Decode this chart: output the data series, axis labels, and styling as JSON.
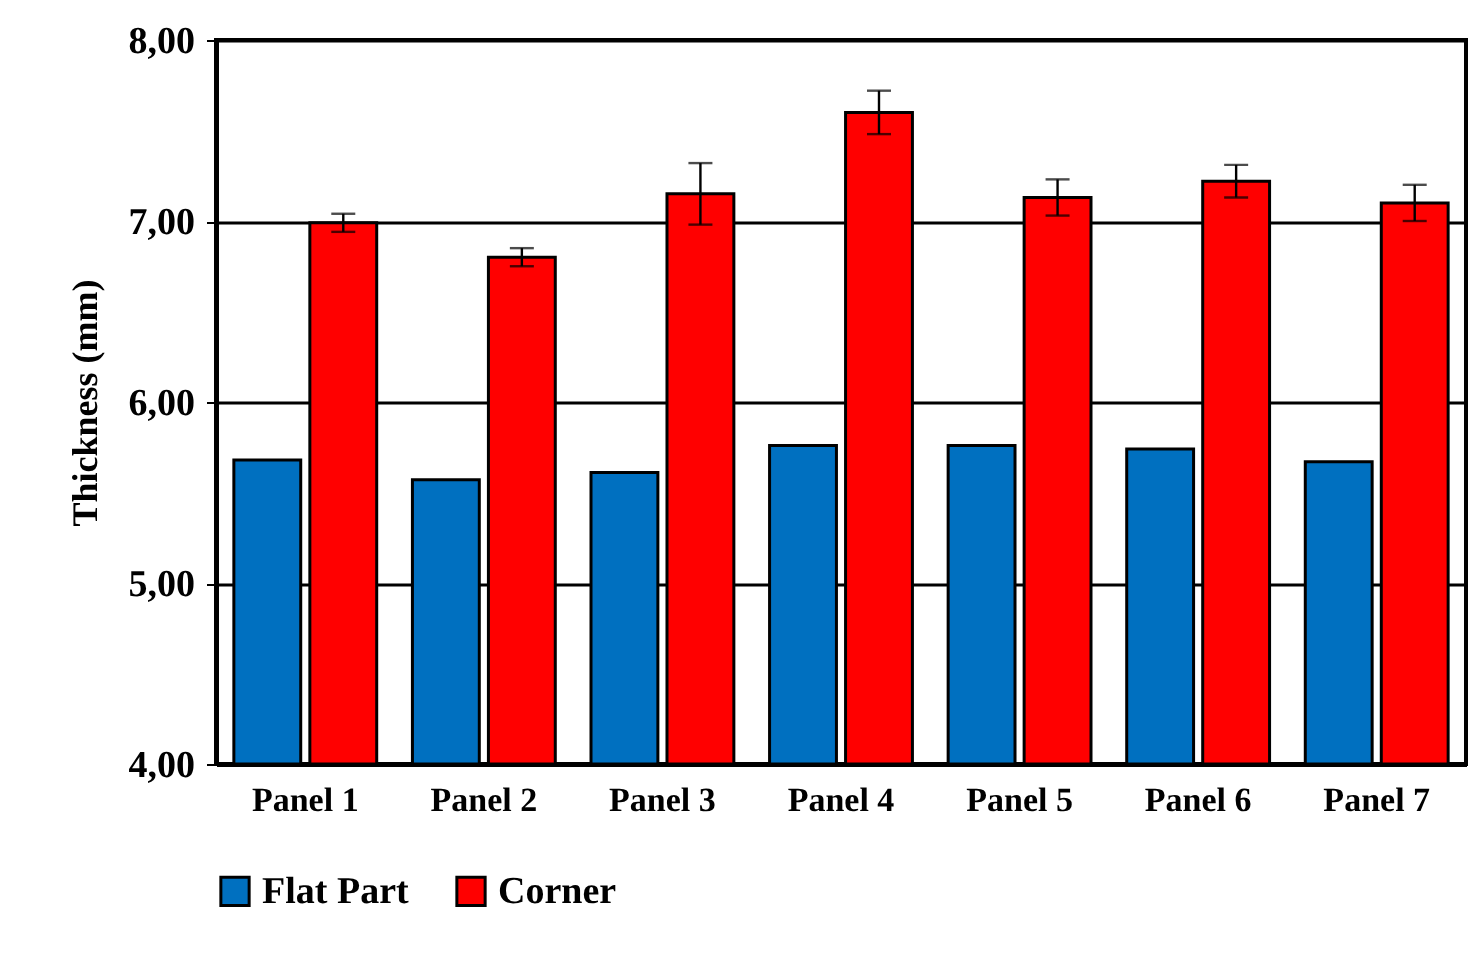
{
  "chart_data": {
    "type": "bar",
    "ylabel": "Thickness (mm)",
    "categories": [
      "Panel 1",
      "Panel 2",
      "Panel 3",
      "Panel 4",
      "Panel 5",
      "Panel 6",
      "Panel 7"
    ],
    "series": [
      {
        "name": "Flat Part",
        "color": "#0070c0",
        "values": [
          5.68,
          5.57,
          5.61,
          5.76,
          5.76,
          5.74,
          5.67
        ]
      },
      {
        "name": "Corner",
        "color": "#ff0000",
        "values": [
          6.99,
          6.8,
          7.15,
          7.6,
          7.13,
          7.22,
          7.1
        ],
        "errors": [
          0.05,
          0.05,
          0.17,
          0.12,
          0.1,
          0.09,
          0.1
        ]
      }
    ],
    "ylim": [
      4,
      8
    ],
    "yticks": [
      {
        "value": 4,
        "label": "4,00"
      },
      {
        "value": 5,
        "label": "5,00"
      },
      {
        "value": 6,
        "label": "6,00"
      },
      {
        "value": 7,
        "label": "7,00"
      },
      {
        "value": 8,
        "label": "8,00"
      }
    ],
    "grid": "y",
    "legend": "bottom"
  }
}
